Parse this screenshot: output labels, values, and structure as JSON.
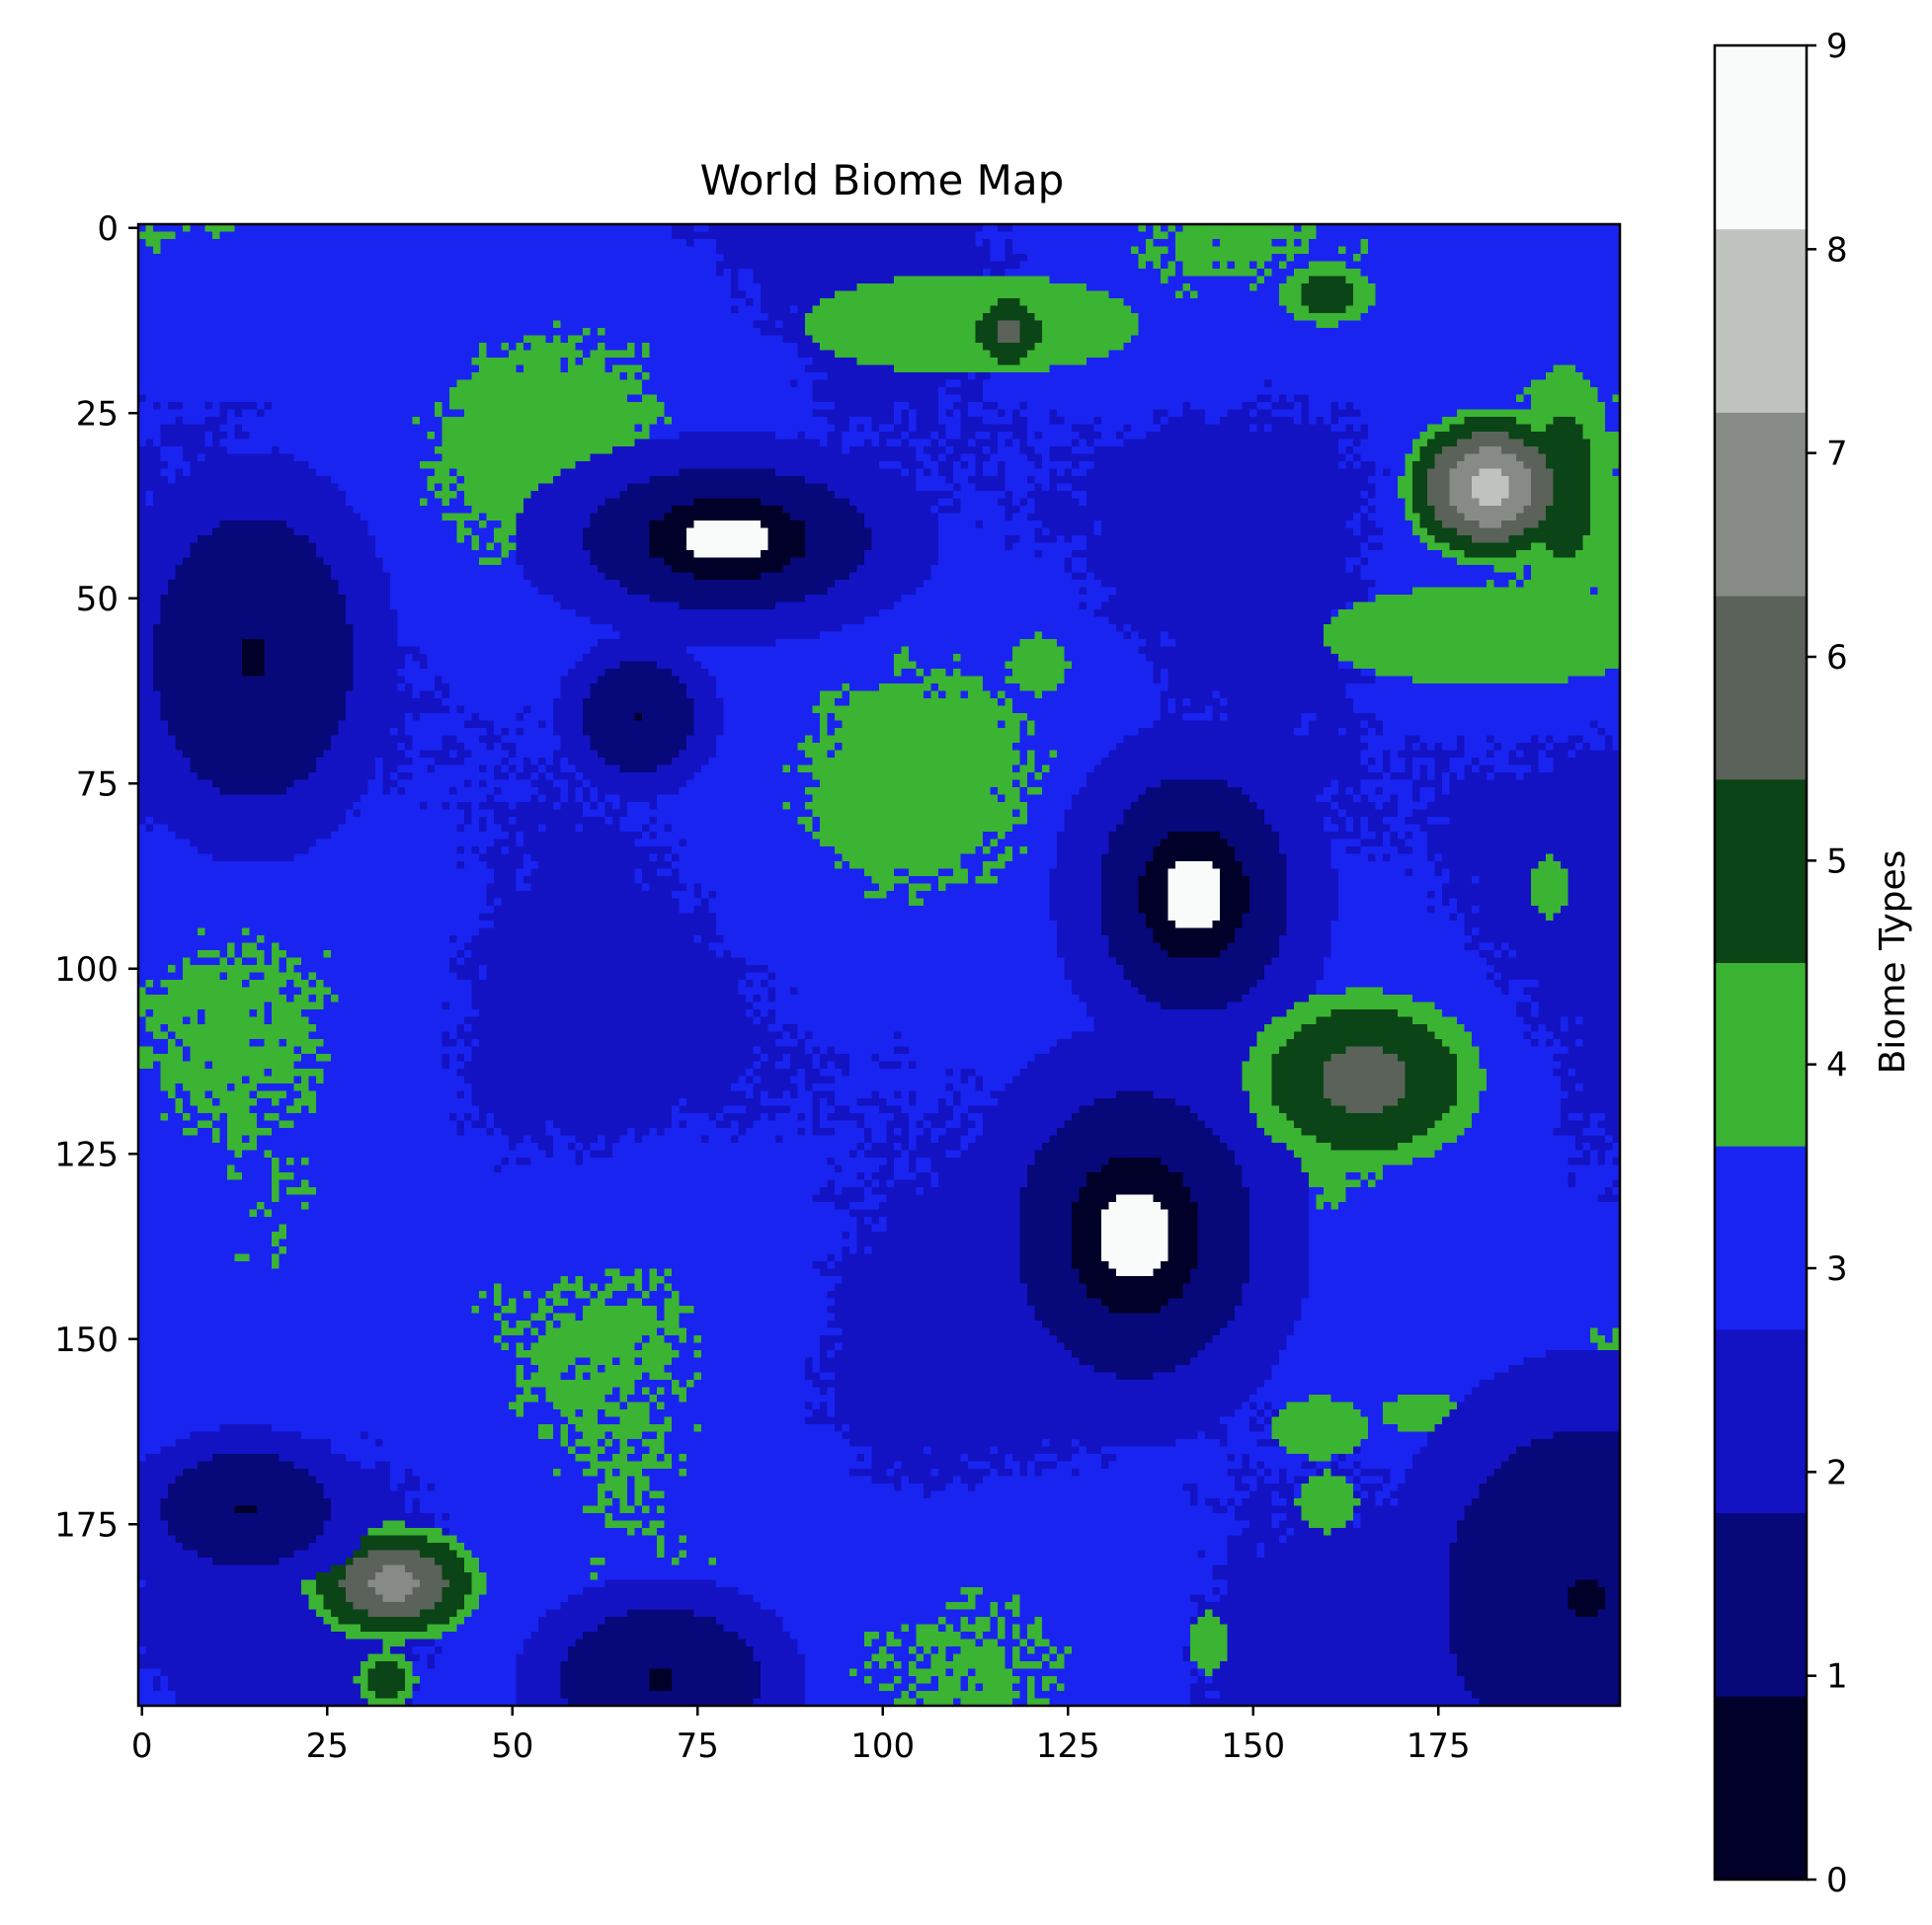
{
  "chart_data": {
    "type": "heatmap",
    "title": "World Biome Map",
    "grid_size": [
      200,
      200
    ],
    "xlim": [
      0,
      199
    ],
    "ylim": [
      0,
      199
    ],
    "x_ticks": [
      0,
      25,
      50,
      75,
      100,
      125,
      150,
      175
    ],
    "y_ticks": [
      0,
      25,
      50,
      75,
      100,
      125,
      150,
      175
    ],
    "colorbar": {
      "label": "Biome Types",
      "ticks": [
        0,
        1,
        2,
        3,
        4,
        5,
        6,
        7,
        8,
        9
      ],
      "range": [
        0,
        9
      ]
    },
    "levels": [
      {
        "level": 0,
        "color": "#000028"
      },
      {
        "level": 1,
        "color": "#07087a"
      },
      {
        "level": 2,
        "color": "#1313c4"
      },
      {
        "level": 3,
        "color": "#1a24f0"
      },
      {
        "level": 4,
        "color": "#3bb333"
      },
      {
        "level": 5,
        "color": "#0b4416"
      },
      {
        "level": 6,
        "color": "#5a6259"
      },
      {
        "level": 7,
        "color": "#878b86"
      },
      {
        "level": 8,
        "color": "#bec3be"
      },
      {
        "level": 9,
        "color": "#f9fbfa"
      }
    ],
    "features": [
      {
        "kind": "peak",
        "x": 79,
        "y": 42,
        "rx": 6,
        "ry": 3,
        "max_level": 9
      },
      {
        "kind": "peak",
        "x": 142,
        "y": 90,
        "rx": 4,
        "ry": 5,
        "max_level": 9
      },
      {
        "kind": "peak",
        "x": 134,
        "y": 136,
        "rx": 5,
        "ry": 6,
        "max_level": 9
      },
      {
        "kind": "island",
        "x": 182,
        "y": 35,
        "rx": 9,
        "ry": 8,
        "max_level": 8
      },
      {
        "kind": "island",
        "x": 165,
        "y": 115,
        "rx": 12,
        "ry": 9,
        "max_level": 6
      },
      {
        "kind": "island",
        "x": 34,
        "y": 183,
        "rx": 9,
        "ry": 6,
        "max_level": 7
      },
      {
        "kind": "island",
        "x": 117,
        "y": 14,
        "rx": 4,
        "ry": 4,
        "max_level": 6
      },
      {
        "kind": "land",
        "x": 112,
        "y": 13,
        "rx": 17,
        "ry": 5,
        "max_level": 4
      },
      {
        "kind": "land",
        "x": 160,
        "y": 9,
        "rx": 5,
        "ry": 3,
        "max_level": 5
      },
      {
        "kind": "land",
        "x": 182,
        "y": 55,
        "rx": 17,
        "ry": 5,
        "max_level": 4
      },
      {
        "kind": "land",
        "x": 192,
        "y": 35,
        "rx": 5,
        "ry": 12,
        "max_level": 5
      },
      {
        "kind": "land",
        "x": 121,
        "y": 59,
        "rx": 3,
        "ry": 3,
        "max_level": 4
      },
      {
        "kind": "land",
        "x": 159,
        "y": 162,
        "rx": 5,
        "ry": 3,
        "max_level": 4
      },
      {
        "kind": "land",
        "x": 173,
        "y": 160,
        "rx": 4,
        "ry": 2,
        "max_level": 4
      },
      {
        "kind": "land",
        "x": 160,
        "y": 172,
        "rx": 3,
        "ry": 3,
        "max_level": 4
      },
      {
        "kind": "land",
        "x": 144,
        "y": 191,
        "rx": 2,
        "ry": 3,
        "max_level": 4
      },
      {
        "kind": "land",
        "x": 190,
        "y": 89,
        "rx": 2,
        "ry": 3,
        "max_level": 4
      },
      {
        "kind": "land",
        "x": 33,
        "y": 196,
        "rx": 3,
        "ry": 3,
        "max_level": 5
      },
      {
        "kind": "basin",
        "x": 15,
        "y": 58,
        "rx": 7,
        "ry": 10,
        "min_level": 0
      },
      {
        "kind": "basin",
        "x": 14,
        "y": 173,
        "rx": 6,
        "ry": 4,
        "min_level": 0
      },
      {
        "kind": "basin",
        "x": 70,
        "y": 196,
        "rx": 7,
        "ry": 5,
        "min_level": 0
      },
      {
        "kind": "basin",
        "x": 67,
        "y": 66,
        "rx": 4,
        "ry": 4,
        "min_level": 0
      },
      {
        "kind": "basin",
        "x": 195,
        "y": 185,
        "rx": 10,
        "ry": 12,
        "min_level": 0
      }
    ]
  }
}
